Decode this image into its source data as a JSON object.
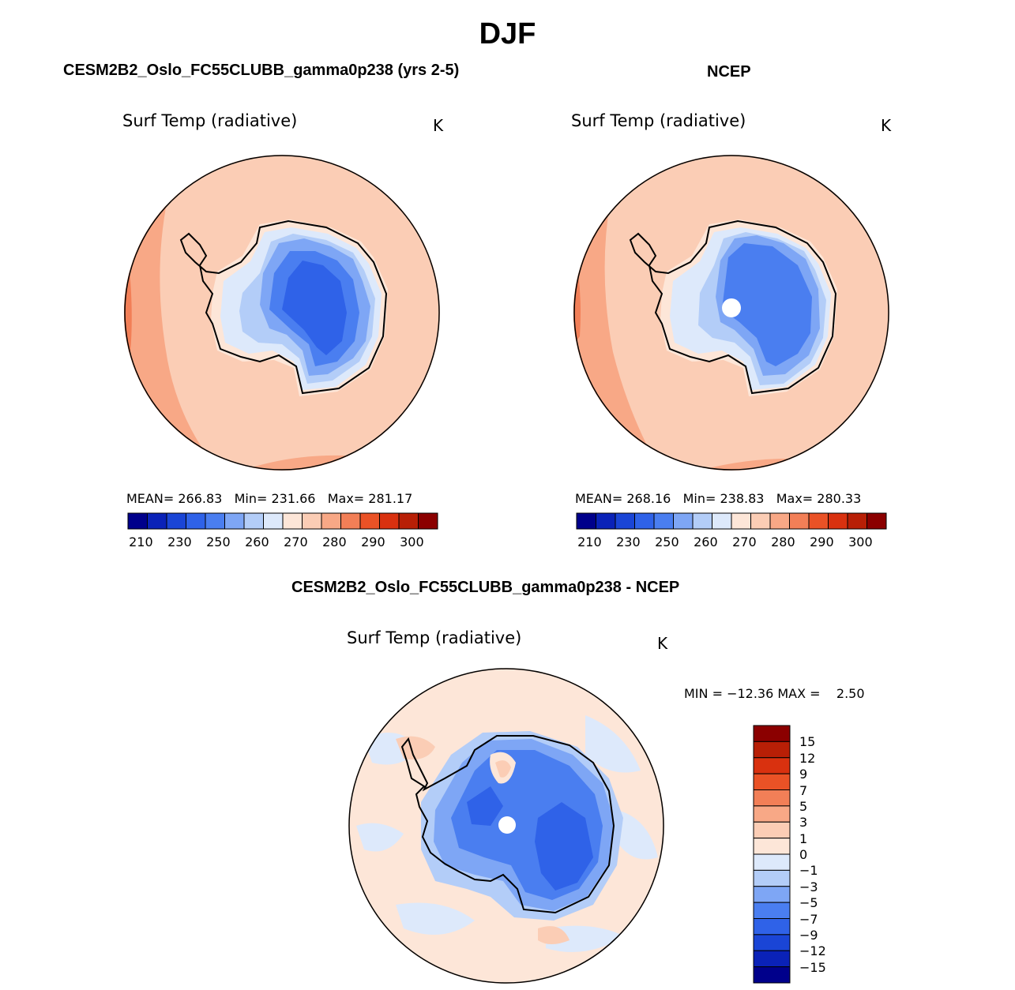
{
  "season_title": "DJF",
  "units": "K",
  "panels": {
    "model": {
      "title": "CESM2B2_Oslo_FC55CLUBB_gamma0p238 (yrs 2-5)",
      "variable": "Surf Temp (radiative)",
      "units": "K",
      "stats": {
        "mean_label": "MEAN=",
        "mean": "266.83",
        "min_label": "Min=",
        "min": "231.66",
        "max_label": "Max=",
        "max": "281.17"
      }
    },
    "obs": {
      "title": "NCEP",
      "variable": "Surf Temp (radiative)",
      "units": "K",
      "stats": {
        "mean_label": "MEAN=",
        "mean": "268.16",
        "min_label": "Min=",
        "min": "238.83",
        "max_label": "Max=",
        "max": "280.33"
      }
    },
    "diff": {
      "title": "CESM2B2_Oslo_FC55CLUBB_gamma0p238 - NCEP",
      "variable": "Surf Temp (radiative)",
      "units": "K",
      "stats_text": "MIN = −12.36 MAX =    2.50"
    }
  },
  "abs_colorbar": {
    "colors": [
      "#00008b",
      "#0a22b8",
      "#1a45d6",
      "#2f62e8",
      "#4a7ef0",
      "#7ea6f5",
      "#b3cdf8",
      "#dde9fb",
      "#fde6d8",
      "#fbcdb5",
      "#f8a886",
      "#f27f57",
      "#ea5226",
      "#d9310f",
      "#b81f06",
      "#8b0000"
    ],
    "tick_labels": [
      "210",
      "230",
      "250",
      "260",
      "270",
      "280",
      "290",
      "300"
    ]
  },
  "diff_colorbar": {
    "colors": [
      "#00008b",
      "#0a22b8",
      "#1a45d6",
      "#2f62e8",
      "#4a7ef0",
      "#7ea6f5",
      "#b3cdf8",
      "#dde9fb",
      "#fde6d8",
      "#fbcdb5",
      "#f8a886",
      "#f27f57",
      "#ea5226",
      "#d9310f",
      "#b81f06",
      "#8b0000"
    ],
    "tick_labels": [
      "15",
      "12",
      "9",
      "7",
      "5",
      "3",
      "1",
      "0",
      "−1",
      "−3",
      "−5",
      "−7",
      "−9",
      "−12",
      "−15"
    ]
  }
}
